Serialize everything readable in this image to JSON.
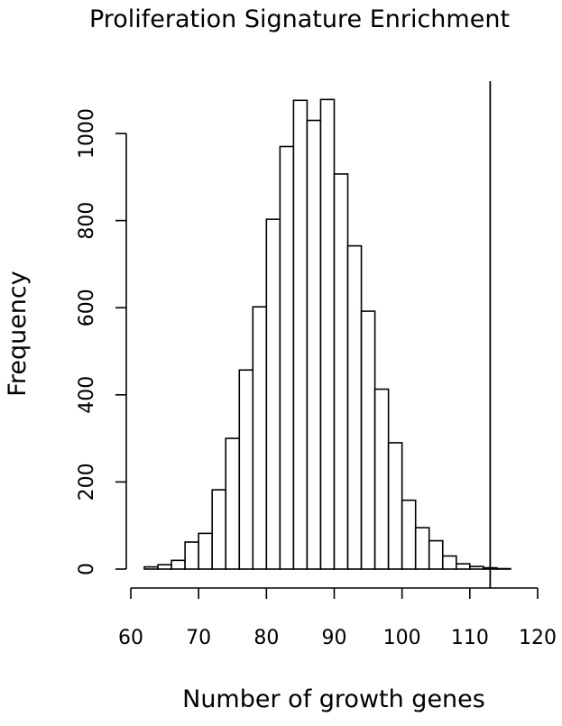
{
  "chart_data": {
    "type": "bar",
    "title": "Proliferation Signature Enrichment",
    "xlabel": "Number of growth genes",
    "ylabel": "Frequency",
    "xlim": [
      60,
      120
    ],
    "ylim": [
      0,
      1000
    ],
    "x_ticks": [
      "60",
      "70",
      "80",
      "90",
      "100",
      "110",
      "120"
    ],
    "y_ticks": [
      "0",
      "200",
      "400",
      "600",
      "800",
      "1000"
    ],
    "bin_edges": [
      62,
      64,
      66,
      68,
      70,
      72,
      74,
      76,
      78,
      80,
      82,
      84,
      86,
      88,
      90,
      92,
      94,
      96,
      98,
      100,
      102,
      104,
      106,
      108,
      110,
      112,
      114,
      116
    ],
    "values": [
      5,
      10,
      20,
      62,
      82,
      182,
      300,
      457,
      602,
      803,
      970,
      1076,
      1030,
      1078,
      907,
      742,
      592,
      413,
      290,
      158,
      95,
      65,
      30,
      12,
      6,
      3,
      1
    ],
    "vertical_line": 113,
    "grid": false,
    "legend": "none"
  }
}
